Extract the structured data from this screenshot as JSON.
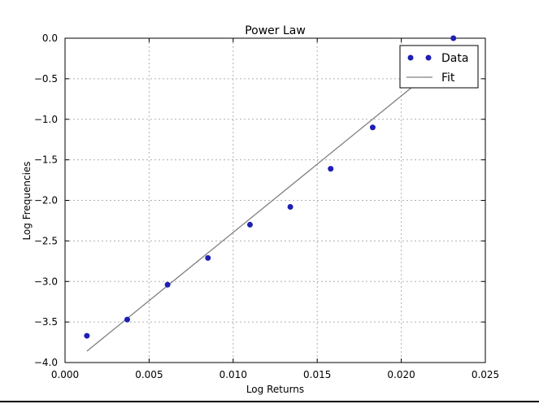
{
  "chart_data": {
    "type": "scatter",
    "title": "Power Law",
    "xlabel": "Log Returns",
    "ylabel": "Log Frequencies",
    "xlim": [
      0.0,
      0.025
    ],
    "ylim": [
      -4.0,
      0.0
    ],
    "xticks": [
      0.0,
      0.005,
      0.01,
      0.015,
      0.02,
      0.025
    ],
    "xtick_labels": [
      "0.000",
      "0.005",
      "0.010",
      "0.015",
      "0.020",
      "0.025"
    ],
    "yticks": [
      0.0,
      -0.5,
      -1.0,
      -1.5,
      -2.0,
      -2.5,
      -3.0,
      -3.5,
      -4.0
    ],
    "ytick_labels": [
      "0.0",
      "−0.5",
      "−1.0",
      "−1.5",
      "−2.0",
      "−2.5",
      "−3.0",
      "−3.5",
      "−4.0"
    ],
    "grid": true,
    "legend_position": "top-right",
    "series": [
      {
        "name": "Data",
        "kind": "scatter",
        "color": "#1f1fb4",
        "x": [
          0.0013,
          0.0037,
          0.0061,
          0.0085,
          0.011,
          0.0134,
          0.0158,
          0.0183,
          0.0231
        ],
        "y": [
          -3.67,
          -3.47,
          -3.04,
          -2.71,
          -2.3,
          -2.08,
          -1.61,
          -1.1,
          0.0
        ]
      },
      {
        "name": "Fit",
        "kind": "line",
        "color": "#808080",
        "x": [
          0.0013,
          0.0231
        ],
        "y": [
          -3.86,
          -0.19
        ]
      }
    ]
  }
}
